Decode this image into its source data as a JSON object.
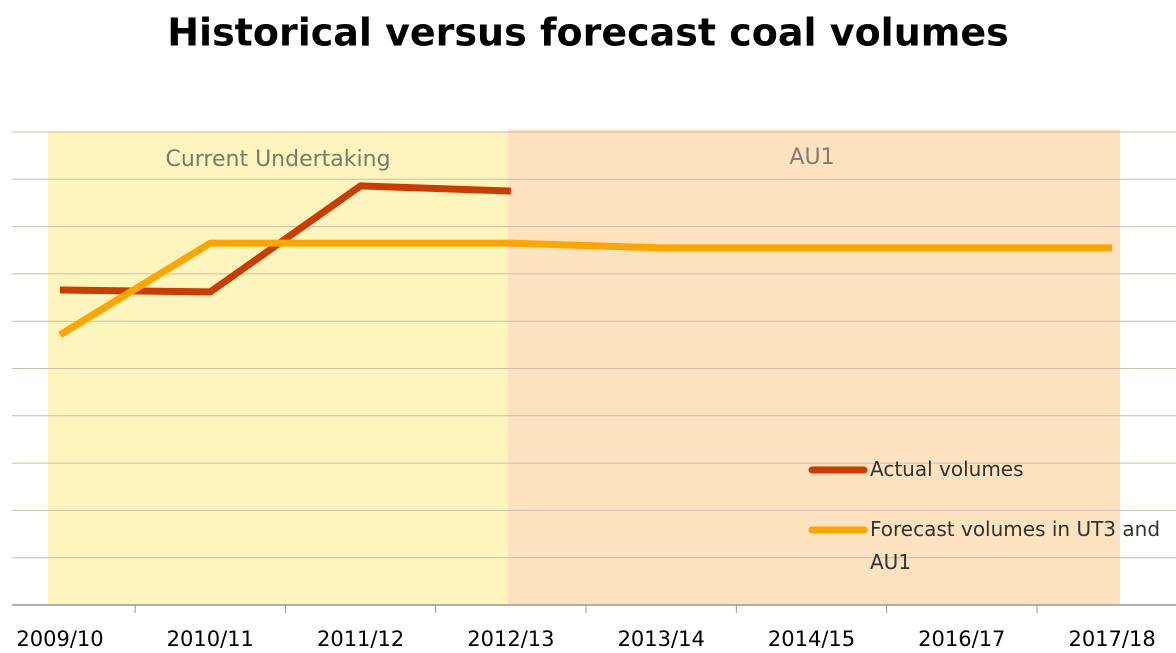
{
  "chart_data": {
    "type": "line",
    "title": "Historical versus forecast coal volumes",
    "annotations": [
      "Current Undertaking",
      "AU1"
    ],
    "categories": [
      "2009/10",
      "2010/11",
      "2011/12",
      "2012/13",
      "2013/14",
      "2014/15",
      "2016/17",
      "2017/18"
    ],
    "series": [
      {
        "name": "Actual volumes",
        "color": "#cc3b00",
        "values": [
          6.66,
          6.62,
          8.86,
          8.75,
          null,
          null,
          null,
          null
        ]
      },
      {
        "name": "Forecast volumes in UT3 and AU1",
        "color": "#ffa500",
        "values": [
          5.71,
          7.65,
          7.65,
          7.65,
          7.55,
          7.55,
          7.55,
          7.55
        ]
      }
    ],
    "ylim": [
      0,
      10
    ],
    "yticks": [
      0,
      1,
      2,
      3,
      4,
      5,
      6,
      7,
      8,
      9,
      10
    ],
    "grid": true
  }
}
